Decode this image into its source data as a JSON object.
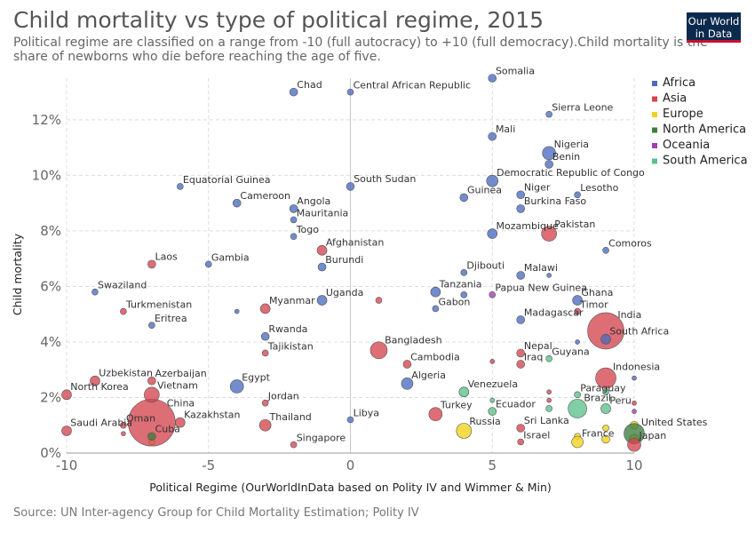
{
  "header": {
    "title": "Child mortality vs type of political regime, 2015",
    "subtitle": "Political regime are classified on a range from -10 (full autocracy) to +10 (full democracy).Child mortality is the share of newborns who die before reaching the age of five.",
    "logo_line1": "Our World",
    "logo_line2": "in Data"
  },
  "footer": {
    "source": "Source: UN Inter-agency Group for Child Mortality Estimation; Polity IV"
  },
  "colors": {
    "Africa": "#4a6bbf",
    "Asia": "#d4454f",
    "Europe": "#f2d21b",
    "North America": "#3f7d3f",
    "Oceania": "#a03cb4",
    "South America": "#5cc08a"
  },
  "chart_data": {
    "type": "scatter",
    "title": "Child mortality vs type of political regime, 2015",
    "xlabel": "Political Regime (OurWorldInData based on Polity IV and Wimmer & Min)",
    "ylabel": "Child mortality",
    "xlim": [
      -10,
      10
    ],
    "ylim": [
      0,
      13.5
    ],
    "x_ticks": [
      "-10",
      "-5",
      "0",
      "5",
      "10"
    ],
    "y_ticks": [
      "0%",
      "2%",
      "4%",
      "6%",
      "8%",
      "10%",
      "12%"
    ],
    "grid": true,
    "legend_position": "right",
    "legend": [
      "Africa",
      "Asia",
      "Europe",
      "North America",
      "Oceania",
      "South America"
    ],
    "points": [
      {
        "label": "Chad",
        "x": -2,
        "y": 13.0,
        "region": "Africa",
        "size": 3
      },
      {
        "label": "Central African Republic",
        "x": 0,
        "y": 13.0,
        "region": "Africa",
        "size": 2
      },
      {
        "label": "Somalia",
        "x": 5,
        "y": 13.5,
        "region": "Africa",
        "size": 3
      },
      {
        "label": "Sierra Leone",
        "x": 7,
        "y": 12.2,
        "region": "Africa",
        "size": 2
      },
      {
        "label": "Mali",
        "x": 5,
        "y": 11.4,
        "region": "Africa",
        "size": 3
      },
      {
        "label": "Nigeria",
        "x": 7,
        "y": 10.8,
        "region": "Africa",
        "size": 6
      },
      {
        "label": "Benin",
        "x": 7,
        "y": 10.4,
        "region": "Africa",
        "size": 3
      },
      {
        "label": "Democratic Republic of Congo",
        "x": 5,
        "y": 9.8,
        "region": "Africa",
        "size": 5
      },
      {
        "label": "Equatorial Guinea",
        "x": -6,
        "y": 9.6,
        "region": "Africa",
        "size": 2
      },
      {
        "label": "South Sudan",
        "x": 0,
        "y": 9.6,
        "region": "Africa",
        "size": 3
      },
      {
        "label": "Guinea",
        "x": 4,
        "y": 9.2,
        "region": "Africa",
        "size": 3
      },
      {
        "label": "Niger",
        "x": 6,
        "y": 9.3,
        "region": "Africa",
        "size": 3
      },
      {
        "label": "Lesotho",
        "x": 8,
        "y": 9.3,
        "region": "Africa",
        "size": 2
      },
      {
        "label": "Cameroon",
        "x": -4,
        "y": 9.0,
        "region": "Africa",
        "size": 3
      },
      {
        "label": "Angola",
        "x": -2,
        "y": 8.8,
        "region": "Africa",
        "size": 3
      },
      {
        "label": "Burkina Faso",
        "x": 6,
        "y": 8.8,
        "region": "Africa",
        "size": 3
      },
      {
        "label": "Mauritania",
        "x": -2,
        "y": 8.4,
        "region": "Africa",
        "size": 2
      },
      {
        "label": "Pakistan",
        "x": 7,
        "y": 7.9,
        "region": "Asia",
        "size": 7
      },
      {
        "label": "Mozambique",
        "x": 5,
        "y": 7.9,
        "region": "Africa",
        "size": 4
      },
      {
        "label": "Togo",
        "x": -2,
        "y": 7.8,
        "region": "Africa",
        "size": 2
      },
      {
        "label": "Comoros",
        "x": 9,
        "y": 7.3,
        "region": "Africa",
        "size": 2
      },
      {
        "label": "Afghanistan",
        "x": -1,
        "y": 7.3,
        "region": "Asia",
        "size": 4
      },
      {
        "label": "Laos",
        "x": -7,
        "y": 6.8,
        "region": "Asia",
        "size": 3
      },
      {
        "label": "Gambia",
        "x": -5,
        "y": 6.8,
        "region": "Africa",
        "size": 2
      },
      {
        "label": "Burundi",
        "x": -1,
        "y": 6.7,
        "region": "Africa",
        "size": 3
      },
      {
        "label": "Djibouti",
        "x": 4,
        "y": 6.5,
        "region": "Africa",
        "size": 2
      },
      {
        "label": "Malawi",
        "x": 6,
        "y": 6.4,
        "region": "Africa",
        "size": 3
      },
      {
        "label": "Swaziland",
        "x": -9,
        "y": 5.8,
        "region": "Africa",
        "size": 2
      },
      {
        "label": "Tanzania",
        "x": 3,
        "y": 5.8,
        "region": "Africa",
        "size": 4
      },
      {
        "label": "Papua New Guinea",
        "x": 5,
        "y": 5.7,
        "region": "Oceania",
        "size": 2
      },
      {
        "label": "Uganda",
        "x": -1,
        "y": 5.5,
        "region": "Africa",
        "size": 4
      },
      {
        "label": "Ghana",
        "x": 8,
        "y": 5.5,
        "region": "Africa",
        "size": 4
      },
      {
        "label": "Gabon",
        "x": 3,
        "y": 5.2,
        "region": "Africa",
        "size": 2
      },
      {
        "label": "Myanmar",
        "x": -3,
        "y": 5.2,
        "region": "Asia",
        "size": 4
      },
      {
        "label": "Turkmenistan",
        "x": -8,
        "y": 5.1,
        "region": "Asia",
        "size": 2
      },
      {
        "label": "Timor",
        "x": 8,
        "y": 5.1,
        "region": "Asia",
        "size": 2
      },
      {
        "label": "Madagascar",
        "x": 6,
        "y": 4.8,
        "region": "Africa",
        "size": 3
      },
      {
        "label": "Eritrea",
        "x": -7,
        "y": 4.6,
        "region": "Africa",
        "size": 2
      },
      {
        "label": "India",
        "x": 9,
        "y": 4.4,
        "region": "Asia",
        "size": 19
      },
      {
        "label": "Rwanda",
        "x": -3,
        "y": 4.2,
        "region": "Africa",
        "size": 3
      },
      {
        "label": "South Africa",
        "x": 9,
        "y": 4.1,
        "region": "Africa",
        "size": 4
      },
      {
        "label": "Bangladesh",
        "x": 1,
        "y": 3.7,
        "region": "Asia",
        "size": 8
      },
      {
        "label": "Nepal",
        "x": 6,
        "y": 3.6,
        "region": "Asia",
        "size": 3
      },
      {
        "label": "Tajikistan",
        "x": -3,
        "y": 3.6,
        "region": "Asia",
        "size": 2
      },
      {
        "label": "Guyana",
        "x": 7,
        "y": 3.4,
        "region": "South America",
        "size": 2
      },
      {
        "label": "Iraq",
        "x": 6,
        "y": 3.2,
        "region": "Asia",
        "size": 3
      },
      {
        "label": "Cambodia",
        "x": 2,
        "y": 3.2,
        "region": "Asia",
        "size": 3
      },
      {
        "label": "Indonesia",
        "x": 9,
        "y": 2.7,
        "region": "Asia",
        "size": 10
      },
      {
        "label": "Uzbekistan",
        "x": -9,
        "y": 2.6,
        "region": "Asia",
        "size": 4
      },
      {
        "label": "Azerbaijan",
        "x": -7,
        "y": 2.6,
        "region": "Asia",
        "size": 3
      },
      {
        "label": "Egypt",
        "x": -4,
        "y": 2.4,
        "region": "Africa",
        "size": 6
      },
      {
        "label": "Algeria",
        "x": 2,
        "y": 2.5,
        "region": "Africa",
        "size": 5
      },
      {
        "label": "Paraguay",
        "x": 8,
        "y": 2.1,
        "region": "South America",
        "size": 2
      },
      {
        "label": "Venezuela",
        "x": 4,
        "y": 2.2,
        "region": "South America",
        "size": 4
      },
      {
        "label": "Vietnam",
        "x": -7,
        "y": 2.1,
        "region": "Asia",
        "size": 7
      },
      {
        "label": "North Korea",
        "x": -10,
        "y": 2.1,
        "region": "Asia",
        "size": 4
      },
      {
        "label": "Jordan",
        "x": -3,
        "y": 1.8,
        "region": "Asia",
        "size": 2
      },
      {
        "label": "Brazil",
        "x": 8,
        "y": 1.6,
        "region": "South America",
        "size": 9
      },
      {
        "label": "Peru",
        "x": 9,
        "y": 1.6,
        "region": "South America",
        "size": 4
      },
      {
        "label": "Ecuador",
        "x": 5,
        "y": 1.5,
        "region": "South America",
        "size": 3
      },
      {
        "label": "Turkey",
        "x": 3,
        "y": 1.4,
        "region": "Asia",
        "size": 6
      },
      {
        "label": "China",
        "x": -7,
        "y": 1.1,
        "region": "Asia",
        "size": 25
      },
      {
        "label": "Kazakhstan",
        "x": -6,
        "y": 1.1,
        "region": "Asia",
        "size": 4
      },
      {
        "label": "Libya",
        "x": 0,
        "y": 1.2,
        "region": "Africa",
        "size": 2
      },
      {
        "label": "Thailand",
        "x": -3,
        "y": 1.0,
        "region": "Asia",
        "size": 5
      },
      {
        "label": "Oman",
        "x": -8,
        "y": 1.0,
        "region": "Asia",
        "size": 2
      },
      {
        "label": "Sri Lanka",
        "x": 6,
        "y": 0.9,
        "region": "Asia",
        "size": 3
      },
      {
        "label": "Saudi Arabia",
        "x": -10,
        "y": 0.8,
        "region": "Asia",
        "size": 4
      },
      {
        "label": "Russia",
        "x": 4,
        "y": 0.8,
        "region": "Europe",
        "size": 7
      },
      {
        "label": "United States",
        "x": 10,
        "y": 0.7,
        "region": "North America",
        "size": 10
      },
      {
        "label": "Cuba",
        "x": -7,
        "y": 0.6,
        "region": "North America",
        "size": 3
      },
      {
        "label": "France",
        "x": 8,
        "y": 0.4,
        "region": "Europe",
        "size": 5
      },
      {
        "label": "Israel",
        "x": 6,
        "y": 0.4,
        "region": "Asia",
        "size": 2
      },
      {
        "label": "Japan",
        "x": 10,
        "y": 0.3,
        "region": "Asia",
        "size": 6
      },
      {
        "label": "Singapore",
        "x": -2,
        "y": 0.3,
        "region": "Asia",
        "size": 2
      }
    ],
    "unlabeled_points": [
      {
        "x": -4,
        "y": 5.1,
        "region": "Africa",
        "size": 1
      },
      {
        "x": 1,
        "y": 5.5,
        "region": "Asia",
        "size": 2
      },
      {
        "x": 4,
        "y": 5.7,
        "region": "Africa",
        "size": 2
      },
      {
        "x": 5,
        "y": 3.3,
        "region": "Asia",
        "size": 1
      },
      {
        "x": 7,
        "y": 6.4,
        "region": "Africa",
        "size": 1
      },
      {
        "x": 8,
        "y": 4.0,
        "region": "Africa",
        "size": 1
      },
      {
        "x": 9,
        "y": 2.2,
        "region": "South America",
        "size": 2
      },
      {
        "x": 10,
        "y": 2.7,
        "region": "Africa",
        "size": 1
      },
      {
        "x": 10,
        "y": 1.8,
        "region": "Asia",
        "size": 1
      },
      {
        "x": 10,
        "y": 1.5,
        "region": "Oceania",
        "size": 1
      },
      {
        "x": 10,
        "y": 1.0,
        "region": "Europe",
        "size": 3
      },
      {
        "x": 10,
        "y": 0.5,
        "region": "Europe",
        "size": 4
      },
      {
        "x": 7,
        "y": 1.6,
        "region": "South America",
        "size": 2
      },
      {
        "x": 7,
        "y": 2.2,
        "region": "Asia",
        "size": 1
      },
      {
        "x": 7,
        "y": 1.9,
        "region": "Asia",
        "size": 1
      },
      {
        "x": 8,
        "y": 0.6,
        "region": "Europe",
        "size": 2
      },
      {
        "x": 9,
        "y": 0.9,
        "region": "Europe",
        "size": 2
      },
      {
        "x": 9,
        "y": 0.5,
        "region": "Europe",
        "size": 3
      },
      {
        "x": 5,
        "y": 1.9,
        "region": "South America",
        "size": 1
      },
      {
        "x": -7,
        "y": 0.4,
        "region": "Europe",
        "size": 2
      },
      {
        "x": -8,
        "y": 0.7,
        "region": "Asia",
        "size": 1
      }
    ]
  }
}
